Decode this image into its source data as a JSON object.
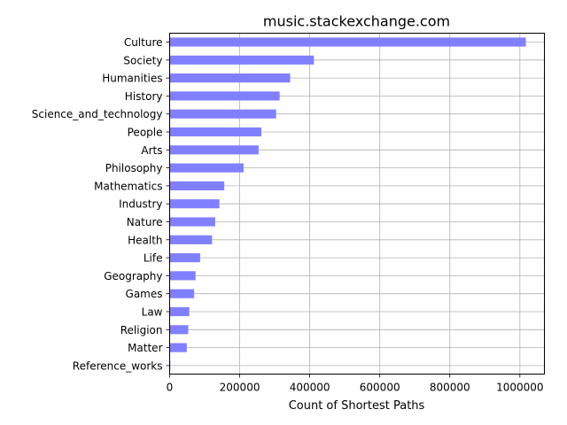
{
  "chart_data": {
    "type": "bar",
    "orientation": "horizontal",
    "title": "music.stackexchange.com",
    "xlabel": "Count of Shortest Paths",
    "ylabel": "",
    "xlim": [
      0,
      1070000
    ],
    "xticks": [
      0,
      200000,
      400000,
      600000,
      800000,
      1000000
    ],
    "xtick_labels": [
      "0",
      "200000",
      "400000",
      "600000",
      "800000",
      "1000000"
    ],
    "grid": true,
    "bar_color": "#8080ff",
    "categories": [
      "Culture",
      "Society",
      "Humanities",
      "History",
      "Science_and_technology",
      "People",
      "Arts",
      "Philosophy",
      "Mathematics",
      "Industry",
      "Nature",
      "Health",
      "Life",
      "Geography",
      "Games",
      "Law",
      "Religion",
      "Matter",
      "Reference_works"
    ],
    "values": [
      1017000,
      412000,
      344000,
      314000,
      304000,
      262000,
      254000,
      211000,
      156000,
      142000,
      130000,
      121000,
      87000,
      74000,
      70000,
      56000,
      53000,
      49000,
      2000
    ]
  }
}
